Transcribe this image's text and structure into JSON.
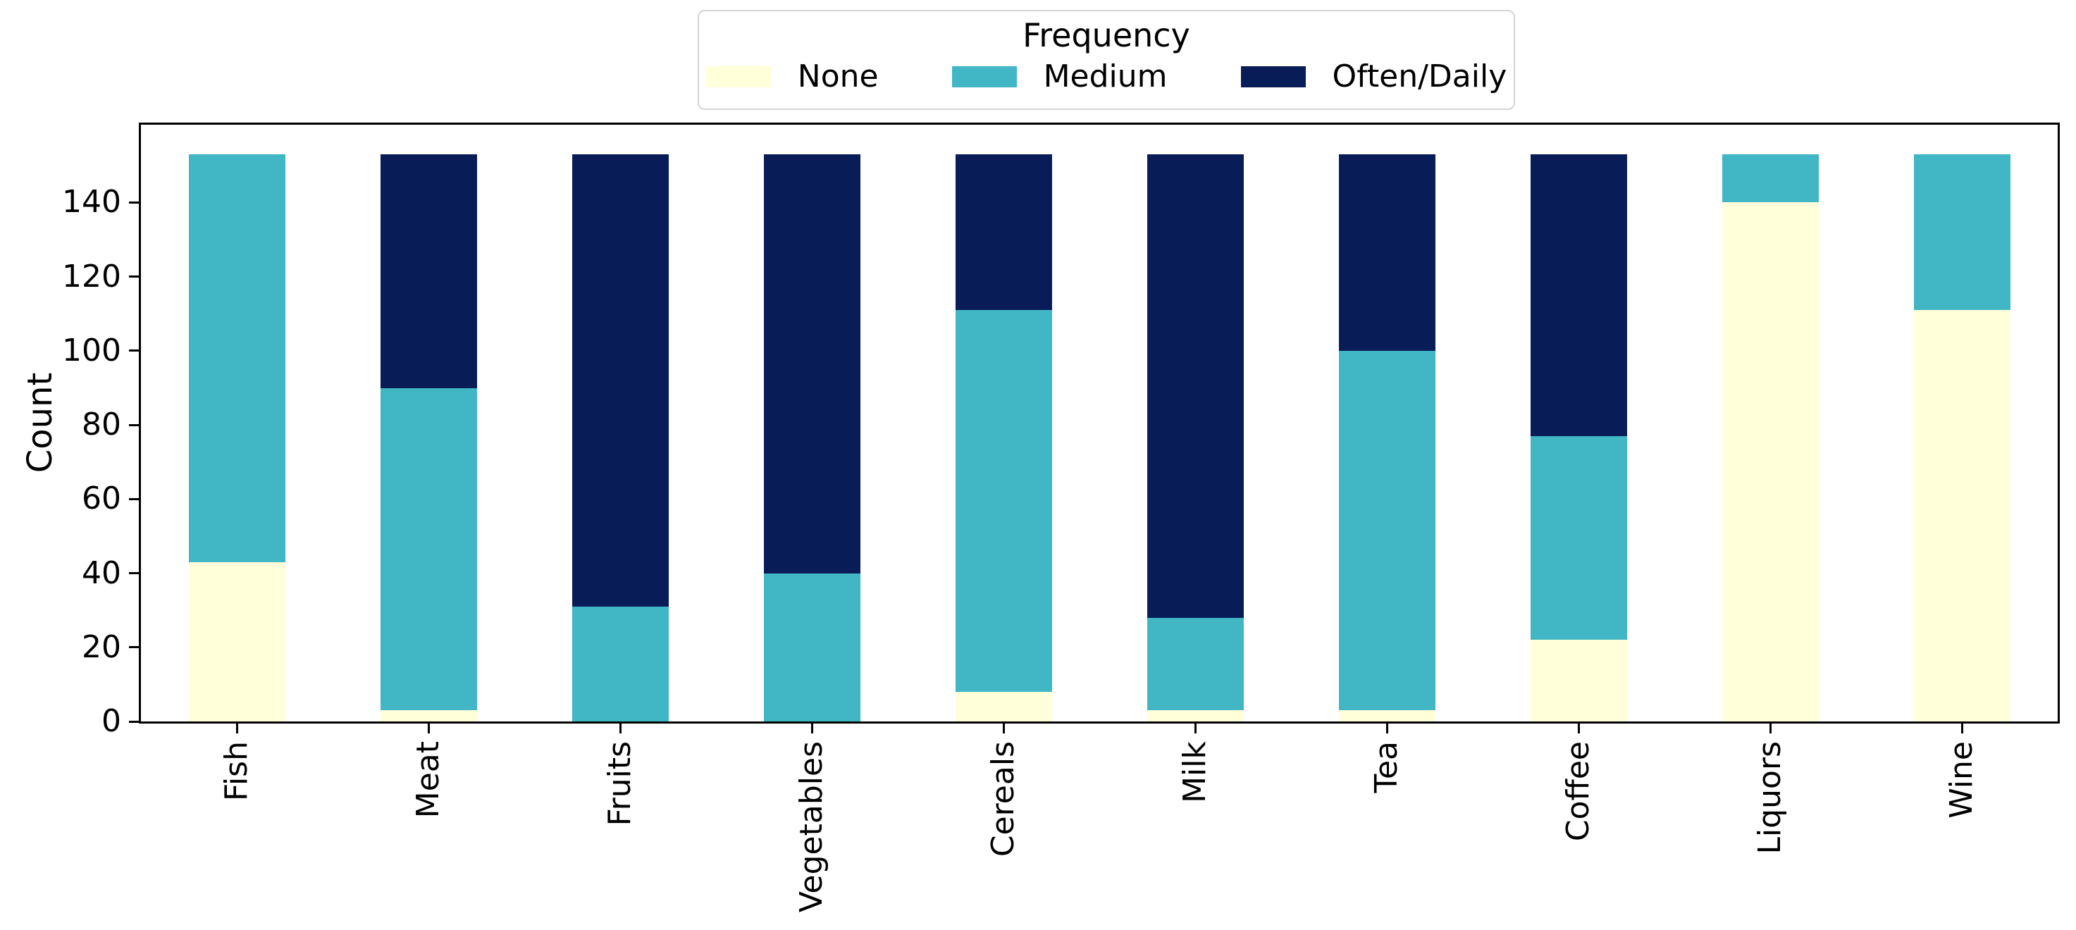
{
  "chart_data": {
    "type": "bar",
    "stacked": true,
    "orientation": "vertical",
    "title": "",
    "xlabel": "",
    "ylabel": "Count",
    "categories": [
      "Fish",
      "Meat",
      "Fruits",
      "Vegetables",
      "Cereals",
      "Milk",
      "Tea",
      "Coffee",
      "Liquors",
      "Wine"
    ],
    "series": [
      {
        "name": "None",
        "color": "#ffffd9",
        "values": [
          43,
          3,
          0,
          0,
          8,
          3,
          3,
          22,
          140,
          111
        ]
      },
      {
        "name": "Medium",
        "color": "#41b6c4",
        "values": [
          110,
          87,
          31,
          40,
          103,
          25,
          97,
          55,
          13,
          42
        ]
      },
      {
        "name": "Often/Daily",
        "color": "#081d58",
        "values": [
          0,
          63,
          122,
          113,
          42,
          125,
          53,
          76,
          0,
          0
        ]
      }
    ],
    "stack_total": 153,
    "yticks": [
      0,
      20,
      40,
      60,
      80,
      100,
      120,
      140
    ],
    "ylim": [
      0,
      161
    ],
    "grid": false,
    "legend": {
      "title": "Frequency",
      "position": "top-center",
      "entries": [
        "None",
        "Medium",
        "Often/Daily"
      ]
    },
    "x_tick_rotation_deg": 90,
    "colors": {
      "spine": "#000000",
      "legend_border": "#d4d4d4",
      "background": "#ffffff",
      "text": "#000000"
    }
  }
}
